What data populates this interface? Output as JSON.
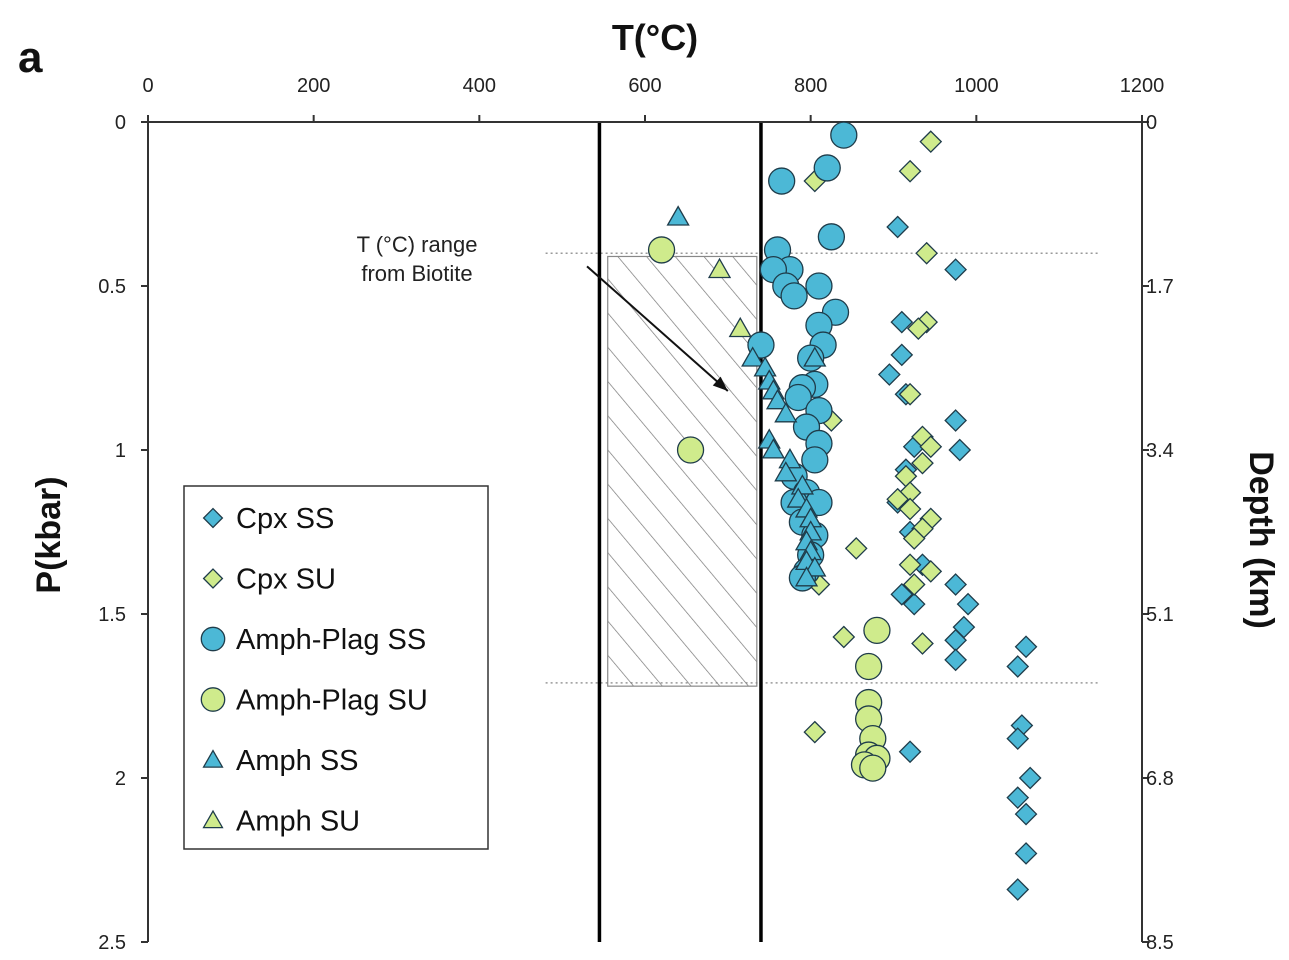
{
  "chart_data": {
    "type": "scatter",
    "panel_label": "a",
    "top_axis_label": "T(°C)",
    "left_axis_label": "P(kbar)",
    "right_axis_label": "Depth (km)",
    "xlim": [
      0,
      1200
    ],
    "ylim": [
      0,
      2.5
    ],
    "x_ticks": [
      "0",
      "200",
      "400",
      "600",
      "800",
      "1000",
      "1200"
    ],
    "y_ticks": [
      "0",
      "0.5",
      "1",
      "1.5",
      "2",
      "2.5"
    ],
    "right_ticks": [
      "0",
      "1.7",
      "3.4",
      "5.1",
      "6.8",
      "8.5"
    ],
    "colors": {
      "blue": "#4cb8d6",
      "green": "#cfeb8c",
      "edge": "#1f3c4a"
    },
    "annotation": {
      "text_lines": [
        "T (°C) range",
        "from Biotite"
      ],
      "biotite_range_T": [
        545,
        740
      ],
      "hatched_T": [
        555,
        735
      ],
      "hatched_P": [
        0.41,
        1.72
      ],
      "arrow_from": [
        530,
        0.44
      ],
      "arrow_to": [
        700,
        0.82
      ]
    },
    "reference_P_lines": [
      0.4,
      1.71
    ],
    "reference_line_T": [
      480,
      1150
    ],
    "series": [
      {
        "name": "Cpx SS",
        "marker": "diamond",
        "color": "blue",
        "points": [
          [
            905,
            0.32
          ],
          [
            975,
            0.45
          ],
          [
            910,
            0.61
          ],
          [
            910,
            0.71
          ],
          [
            895,
            0.77
          ],
          [
            915,
            0.83
          ],
          [
            975,
            0.91
          ],
          [
            925,
            0.99
          ],
          [
            980,
            1.0
          ],
          [
            915,
            1.06
          ],
          [
            905,
            1.16
          ],
          [
            920,
            1.25
          ],
          [
            935,
            1.35
          ],
          [
            975,
            1.41
          ],
          [
            910,
            1.44
          ],
          [
            925,
            1.47
          ],
          [
            990,
            1.47
          ],
          [
            985,
            1.54
          ],
          [
            975,
            1.58
          ],
          [
            975,
            1.64
          ],
          [
            1060,
            1.6
          ],
          [
            1050,
            1.66
          ],
          [
            1055,
            1.84
          ],
          [
            1050,
            1.88
          ],
          [
            920,
            1.92
          ],
          [
            1065,
            2.0
          ],
          [
            1050,
            2.06
          ],
          [
            1060,
            2.11
          ],
          [
            1060,
            2.23
          ],
          [
            1050,
            2.34
          ]
        ]
      },
      {
        "name": "Cpx SU",
        "marker": "diamond",
        "color": "green",
        "points": [
          [
            945,
            0.06
          ],
          [
            920,
            0.15
          ],
          [
            805,
            0.18
          ],
          [
            940,
            0.4
          ],
          [
            940,
            0.61
          ],
          [
            930,
            0.63
          ],
          [
            920,
            0.83
          ],
          [
            825,
            0.91
          ],
          [
            935,
            0.96
          ],
          [
            945,
            0.99
          ],
          [
            935,
            1.04
          ],
          [
            915,
            1.08
          ],
          [
            920,
            1.13
          ],
          [
            905,
            1.15
          ],
          [
            920,
            1.18
          ],
          [
            945,
            1.21
          ],
          [
            935,
            1.24
          ],
          [
            925,
            1.27
          ],
          [
            855,
            1.3
          ],
          [
            920,
            1.35
          ],
          [
            945,
            1.37
          ],
          [
            925,
            1.41
          ],
          [
            810,
            1.41
          ],
          [
            840,
            1.57
          ],
          [
            935,
            1.59
          ],
          [
            805,
            1.86
          ]
        ]
      },
      {
        "name": "Amph-Plag SS",
        "marker": "circle",
        "color": "blue",
        "points": [
          [
            840,
            0.04
          ],
          [
            820,
            0.14
          ],
          [
            765,
            0.18
          ],
          [
            825,
            0.35
          ],
          [
            760,
            0.39
          ],
          [
            775,
            0.45
          ],
          [
            755,
            0.45
          ],
          [
            770,
            0.5
          ],
          [
            810,
            0.5
          ],
          [
            780,
            0.53
          ],
          [
            830,
            0.58
          ],
          [
            810,
            0.62
          ],
          [
            815,
            0.68
          ],
          [
            740,
            0.68
          ],
          [
            800,
            0.72
          ],
          [
            805,
            0.8
          ],
          [
            790,
            0.81
          ],
          [
            785,
            0.84
          ],
          [
            810,
            0.88
          ],
          [
            795,
            0.93
          ],
          [
            810,
            0.98
          ],
          [
            805,
            1.03
          ],
          [
            780,
            1.08
          ],
          [
            795,
            1.13
          ],
          [
            780,
            1.16
          ],
          [
            810,
            1.16
          ],
          [
            790,
            1.22
          ],
          [
            805,
            1.26
          ],
          [
            800,
            1.32
          ],
          [
            795,
            1.37
          ],
          [
            790,
            1.39
          ]
        ]
      },
      {
        "name": "Amph-Plag SU",
        "marker": "circle",
        "color": "green",
        "points": [
          [
            620,
            0.39
          ],
          [
            655,
            1.0
          ],
          [
            880,
            1.55
          ],
          [
            870,
            1.66
          ],
          [
            870,
            1.77
          ],
          [
            870,
            1.82
          ],
          [
            875,
            1.88
          ],
          [
            870,
            1.93
          ],
          [
            880,
            1.94
          ],
          [
            865,
            1.96
          ],
          [
            875,
            1.97
          ]
        ]
      },
      {
        "name": "Amph SS",
        "marker": "triangle",
        "color": "blue",
        "points": [
          [
            640,
            0.29
          ],
          [
            730,
            0.72
          ],
          [
            745,
            0.75
          ],
          [
            750,
            0.79
          ],
          [
            755,
            0.82
          ],
          [
            760,
            0.85
          ],
          [
            805,
            0.72
          ],
          [
            770,
            0.89
          ],
          [
            750,
            0.97
          ],
          [
            755,
            1.0
          ],
          [
            775,
            1.03
          ],
          [
            770,
            1.07
          ],
          [
            790,
            1.11
          ],
          [
            785,
            1.15
          ],
          [
            795,
            1.18
          ],
          [
            800,
            1.21
          ],
          [
            800,
            1.25
          ],
          [
            795,
            1.28
          ],
          [
            800,
            1.31
          ],
          [
            795,
            1.34
          ],
          [
            805,
            1.36
          ],
          [
            795,
            1.39
          ]
        ]
      },
      {
        "name": "Amph SU",
        "marker": "triangle",
        "color": "green",
        "points": [
          [
            690,
            0.45
          ],
          [
            715,
            0.63
          ]
        ]
      }
    ],
    "legend": {
      "placement": "center-left"
    }
  }
}
